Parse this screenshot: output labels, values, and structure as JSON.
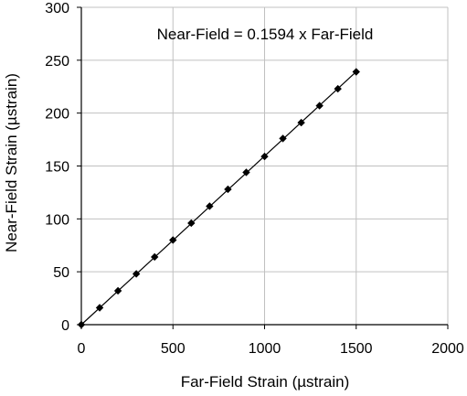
{
  "chart_data": {
    "type": "scatter",
    "title": "",
    "xlabel": "Far-Field Strain (µstrain)",
    "ylabel": "Near-Field Strain (µstrain)",
    "xlim": [
      0,
      2000
    ],
    "ylim": [
      0,
      300
    ],
    "x_ticks": [
      0,
      500,
      1000,
      1500,
      2000
    ],
    "y_ticks": [
      0,
      50,
      100,
      150,
      200,
      250,
      300
    ],
    "x_tick_labels": [
      "0",
      "500",
      "1000",
      "1500",
      "2000"
    ],
    "y_tick_labels": [
      "0",
      "50",
      "100",
      "150",
      "200",
      "250",
      "300"
    ],
    "grid": true,
    "annotation": "Near-Field = 0.1594 x Far-Field",
    "marker": "diamond",
    "points": [
      {
        "x": 0,
        "y": 0
      },
      {
        "x": 100,
        "y": 16
      },
      {
        "x": 200,
        "y": 32
      },
      {
        "x": 300,
        "y": 48
      },
      {
        "x": 400,
        "y": 64
      },
      {
        "x": 500,
        "y": 80
      },
      {
        "x": 600,
        "y": 96
      },
      {
        "x": 700,
        "y": 112
      },
      {
        "x": 800,
        "y": 128
      },
      {
        "x": 900,
        "y": 144
      },
      {
        "x": 1000,
        "y": 159
      },
      {
        "x": 1100,
        "y": 176
      },
      {
        "x": 1200,
        "y": 191
      },
      {
        "x": 1300,
        "y": 207
      },
      {
        "x": 1400,
        "y": 223
      },
      {
        "x": 1500,
        "y": 239
      }
    ],
    "fit_line": {
      "slope": 0.1594,
      "x_range": [
        0,
        1500
      ]
    },
    "colors": {
      "marker": "#000000",
      "line": "#000000",
      "grid": "#c0c0c0",
      "axis": "#000000"
    }
  }
}
